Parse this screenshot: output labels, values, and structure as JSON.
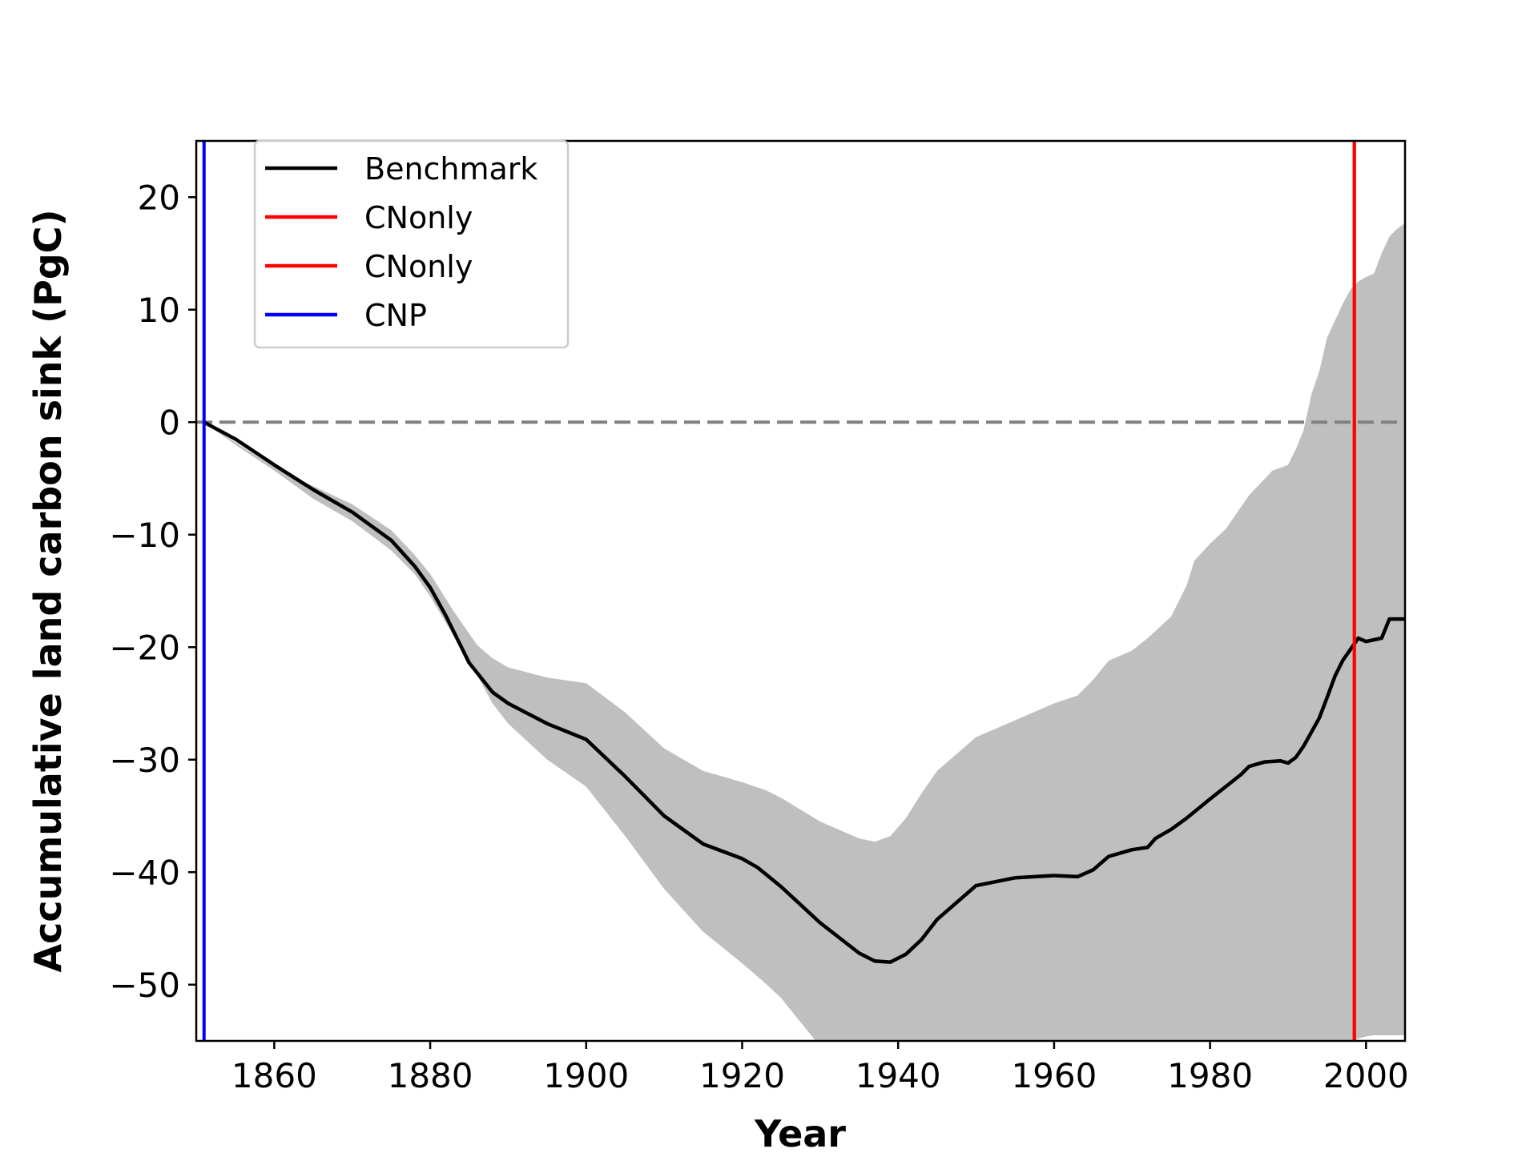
{
  "chart_data": {
    "type": "line",
    "title": "",
    "xlabel": "Year",
    "ylabel": "Accumulative land carbon sink (PgC)",
    "xlim": [
      1850,
      2005
    ],
    "ylim": [
      -55,
      25
    ],
    "xticks": [
      1860,
      1880,
      1900,
      1920,
      1940,
      1960,
      1980,
      2000
    ],
    "yticks": [
      20,
      10,
      0,
      -10,
      -20,
      -30,
      -40,
      -50
    ],
    "ytick_labels": [
      "20",
      "10",
      "0",
      "−10",
      "−20",
      "−30",
      "−40",
      "−50"
    ],
    "grid": false,
    "legend_position": "upper-left",
    "reference_line": {
      "y": 0,
      "style": "dashed",
      "color": "#808080"
    },
    "series": [
      {
        "name": "Benchmark",
        "color": "#000000",
        "x": [
          1851,
          1855,
          1860,
          1865,
          1870,
          1875,
          1878,
          1880,
          1882,
          1885,
          1888,
          1890,
          1895,
          1900,
          1905,
          1910,
          1915,
          1920,
          1922,
          1925,
          1930,
          1935,
          1937,
          1939,
          1941,
          1943,
          1945,
          1950,
          1955,
          1960,
          1963,
          1965,
          1967,
          1970,
          1972,
          1973,
          1975,
          1977,
          1980,
          1982,
          1984,
          1985,
          1987,
          1989,
          1990,
          1991,
          1992,
          1994,
          1995,
          1996,
          1997,
          1998,
          1999,
          2000,
          2002,
          2003,
          2005
        ],
        "y": [
          0,
          -1.5,
          -3.8,
          -6,
          -8,
          -10.5,
          -12.8,
          -14.7,
          -17.2,
          -21.4,
          -24,
          -25,
          -26.8,
          -28.2,
          -31.5,
          -35,
          -37.5,
          -38.8,
          -39.6,
          -41.3,
          -44.5,
          -47.2,
          -47.9,
          -48,
          -47.3,
          -46,
          -44.2,
          -41.2,
          -40.5,
          -40.3,
          -40.4,
          -39.8,
          -38.6,
          -38,
          -37.8,
          -37,
          -36.2,
          -35.2,
          -33.5,
          -32.4,
          -31.3,
          -30.6,
          -30.2,
          -30.1,
          -30.3,
          -29.8,
          -28.8,
          -26.3,
          -24.5,
          -22.6,
          -21.2,
          -20.2,
          -19.2,
          -19.5,
          -19.2,
          -17.5,
          -17.5
        ]
      },
      {
        "name": "CNonly",
        "color": "#ff0000",
        "orientation": "vertical",
        "x": 1998.5
      },
      {
        "name": "CNonly",
        "color": "#ff0000",
        "orientation": "vertical",
        "x": 1998.5
      },
      {
        "name": "CNP",
        "color": "#0000ff",
        "orientation": "vertical",
        "x": 1851
      }
    ],
    "band": {
      "color": "#bfbfbf",
      "x": [
        1851,
        1855,
        1860,
        1865,
        1870,
        1875,
        1878,
        1880,
        1883,
        1886,
        1888,
        1890,
        1895,
        1900,
        1905,
        1910,
        1915,
        1920,
        1923,
        1925,
        1930,
        1935,
        1937,
        1939,
        1941,
        1943,
        1945,
        1950,
        1955,
        1960,
        1963,
        1965,
        1967,
        1970,
        1972,
        1975,
        1977,
        1978,
        1980,
        1982,
        1985,
        1988,
        1990,
        1991,
        1992,
        1993,
        1994,
        1995,
        1996,
        1997,
        1998,
        1999,
        2000,
        2001,
        2002,
        2003,
        2004,
        2005
      ],
      "upper": [
        0,
        -1.8,
        -4,
        -5.7,
        -7.3,
        -9.6,
        -11.8,
        -13.5,
        -16.8,
        -19.8,
        -21,
        -21.8,
        -22.7,
        -23.2,
        -25.8,
        -29,
        -31,
        -32,
        -32.7,
        -33.4,
        -35.5,
        -37,
        -37.3,
        -36.8,
        -35.2,
        -33,
        -31,
        -28,
        -26.5,
        -25,
        -24.3,
        -22.9,
        -21.2,
        -20.3,
        -19.2,
        -17.3,
        -14.5,
        -12.3,
        -10.8,
        -9.5,
        -6.5,
        -4.3,
        -3.8,
        -2.4,
        -0.7,
        2.5,
        4.5,
        7.5,
        9,
        10.5,
        11.8,
        12.5,
        12.9,
        13.2,
        15,
        16.5,
        17.2,
        17.7
      ],
      "lower": [
        0,
        -2,
        -4.3,
        -6.8,
        -8.8,
        -11.4,
        -13.5,
        -15.5,
        -19,
        -22.5,
        -25,
        -26.8,
        -30,
        -32.4,
        -36.8,
        -41.5,
        -45.3,
        -48.1,
        -49.9,
        -51.2,
        -55.5,
        -60,
        -62,
        -63.5,
        -64.5,
        -65,
        -65.5,
        -65.5,
        -65,
        -64.5,
        -64,
        -63.5,
        -63,
        -62.5,
        -62,
        -61,
        -60.5,
        -60,
        -59,
        -58,
        -57.5,
        -57,
        -56.5,
        -56.2,
        -56,
        -55.8,
        -55.6,
        -55.4,
        -55.3,
        -55.2,
        -55,
        -54.8,
        -54.6,
        -54.5,
        -54.5,
        -54.5,
        -54.5,
        -54.5
      ]
    }
  }
}
